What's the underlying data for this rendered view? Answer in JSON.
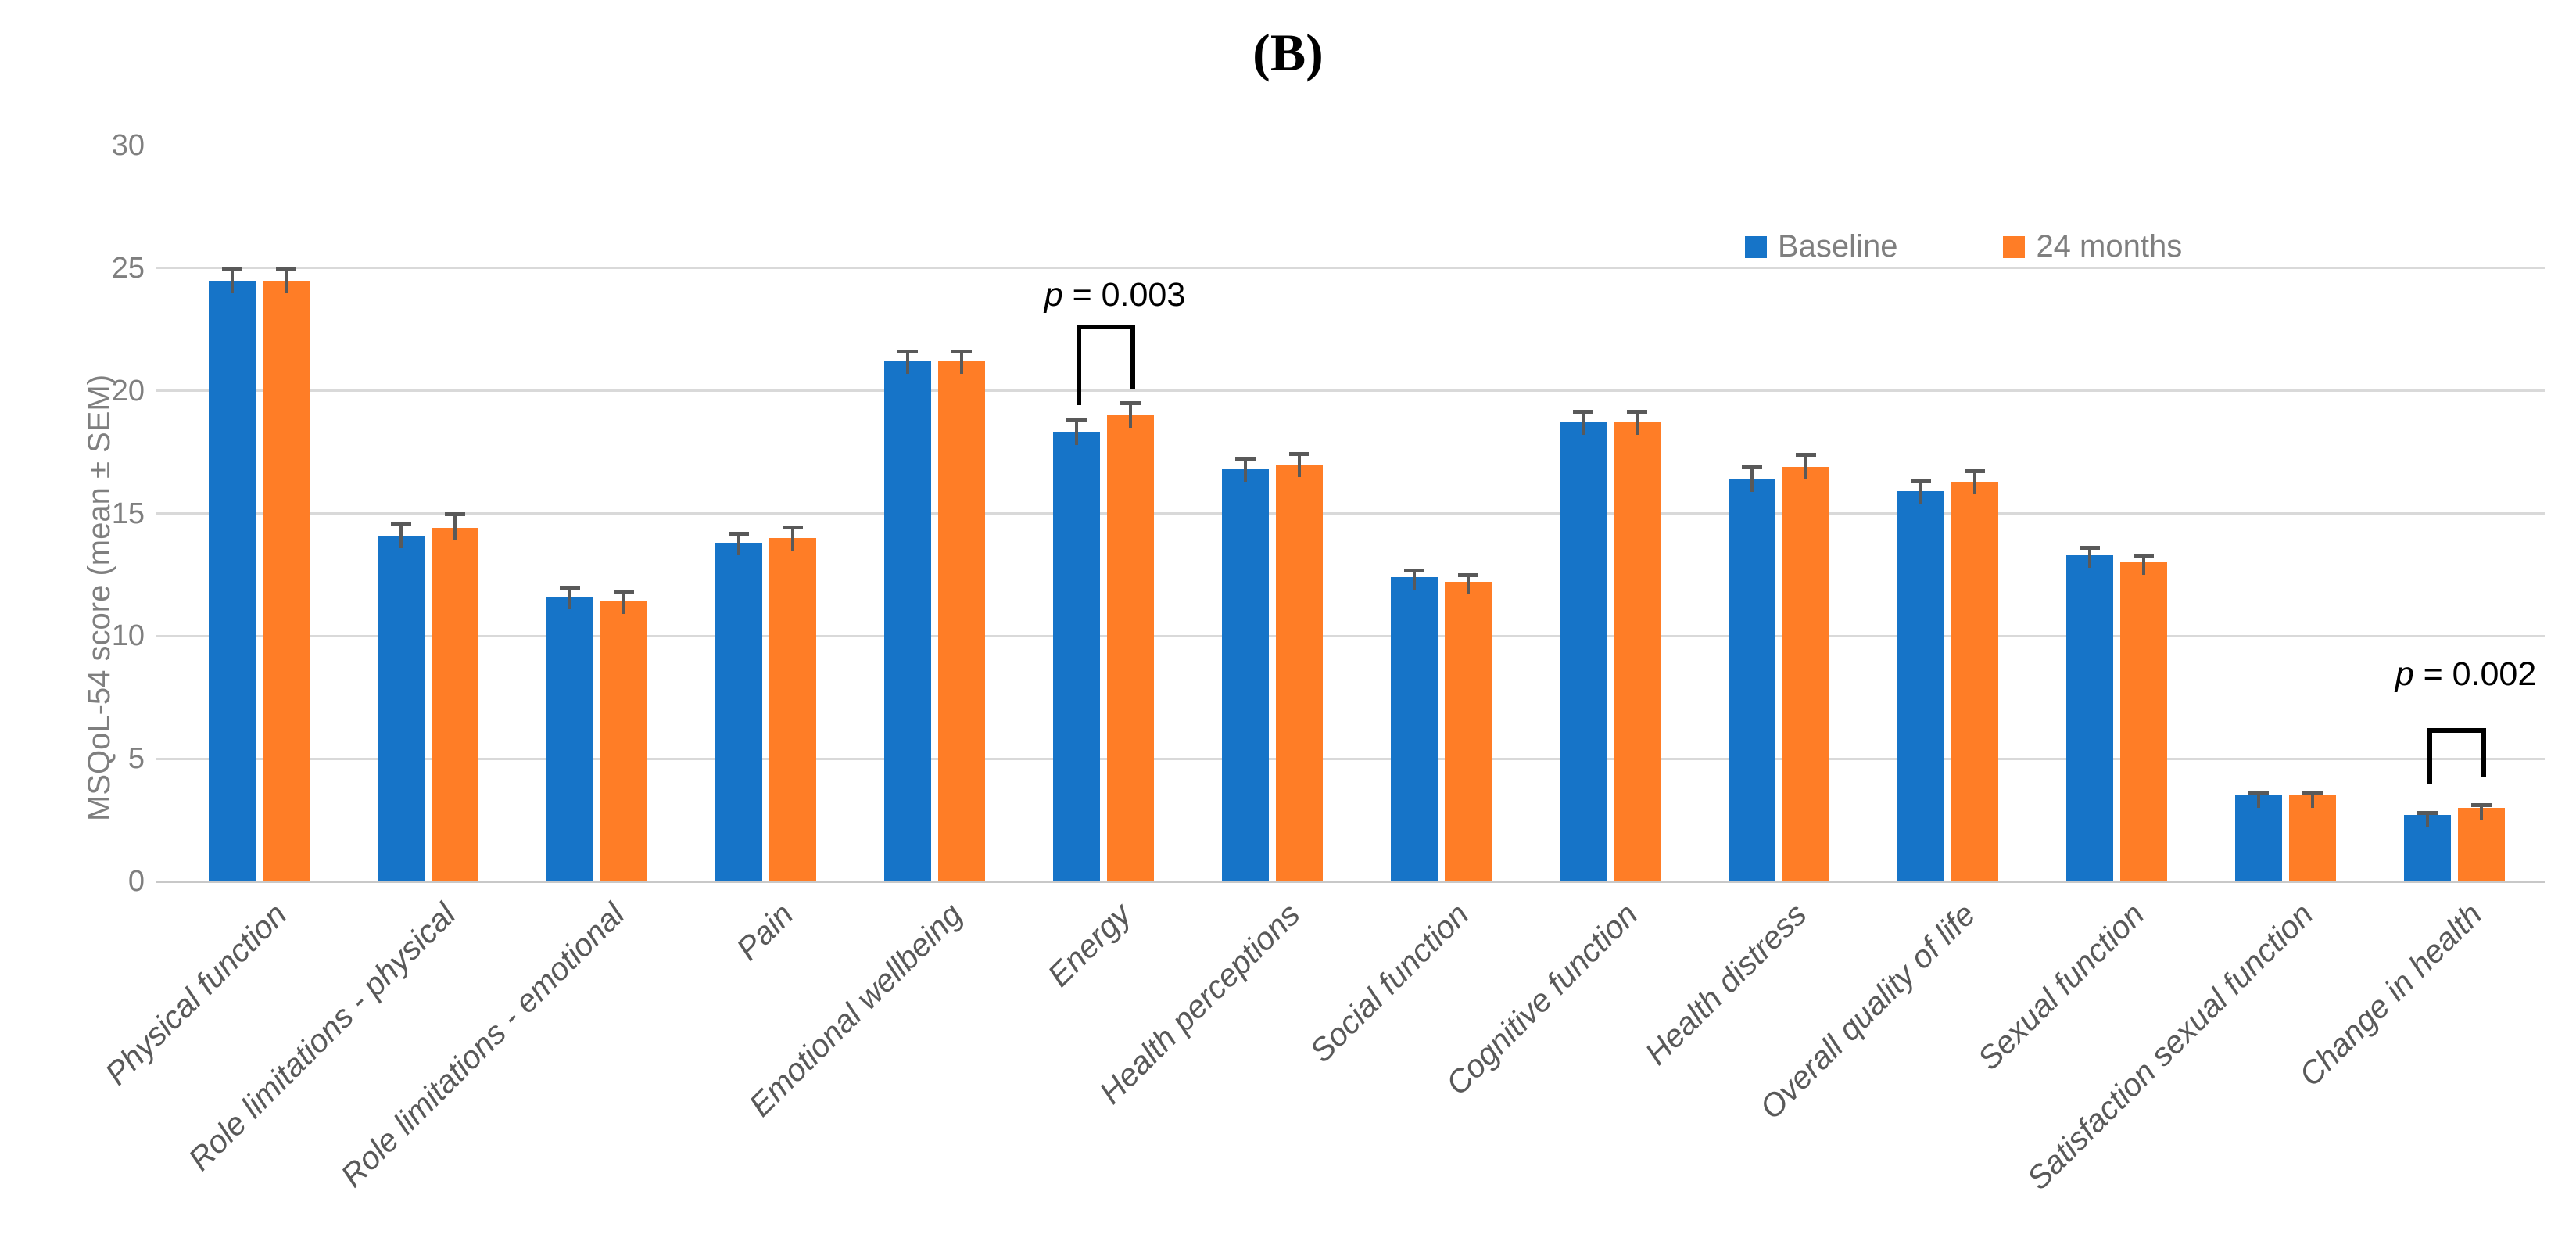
{
  "palette": {
    "background": "#ffffff",
    "gridline": "#d9d9d9",
    "axis_line": "#c8c8c8",
    "tick_text": "#7f7f7f",
    "category_text": "#595959",
    "legend_text": "#7f7f7f",
    "error_bar": "#595959",
    "annotation_text": "#000000",
    "baseline_series": "#1674c8",
    "months24_series": "#ff7d26"
  },
  "chart_data": {
    "type": "bar",
    "title": "(B)",
    "ylabel": "MSQoL-54 score (mean ± SEM)",
    "xlabel": "",
    "ylim": [
      0,
      30
    ],
    "yticks": [
      0,
      5,
      10,
      15,
      20,
      25,
      30
    ],
    "gridline_values": [
      5,
      10,
      15,
      20,
      25
    ],
    "grid": "horizontal only",
    "legend_position": "top-right",
    "error_bars": "upper SEM with cap",
    "categories": [
      "Physical function",
      "Role limitations - physical",
      "Role limitations - emotional",
      "Pain",
      "Emotional wellbeing",
      "Energy",
      "Health perceptions",
      "Social function",
      "Cognitive function",
      "Health distress",
      "Overall quality of life",
      "Sexual function",
      "Satisfaction sexual function",
      "Change in health"
    ],
    "series": [
      {
        "name": "Baseline",
        "color": "#1674c8",
        "values": [
          24.5,
          14.1,
          11.6,
          13.8,
          21.2,
          18.3,
          16.8,
          12.4,
          18.7,
          16.4,
          15.9,
          13.3,
          3.5,
          2.7
        ],
        "sem": [
          0.5,
          0.5,
          0.4,
          0.4,
          0.4,
          0.5,
          0.45,
          0.3,
          0.45,
          0.5,
          0.45,
          0.3,
          0.15,
          0.1
        ]
      },
      {
        "name": "24 months",
        "color": "#ff7d26",
        "values": [
          24.5,
          14.4,
          11.4,
          14.0,
          21.2,
          19.0,
          17.0,
          12.2,
          18.7,
          16.9,
          16.3,
          13.0,
          3.5,
          3.0
        ],
        "sem": [
          0.5,
          0.6,
          0.4,
          0.45,
          0.4,
          0.5,
          0.45,
          0.3,
          0.45,
          0.5,
          0.45,
          0.3,
          0.15,
          0.12
        ]
      }
    ],
    "annotations": [
      {
        "label_prefix": "p",
        "label_rest": " = 0.003",
        "category_index": 5,
        "text_y": 23.9,
        "bracket_top_y": 22.7,
        "left_arm_end_y": 19.4,
        "right_arm_end_y": 20.1
      },
      {
        "label_prefix": "p",
        "label_rest": " = 0.002",
        "category_index": 13,
        "text_y": 8.45,
        "bracket_top_y": 6.25,
        "left_arm_end_y": 4.0,
        "right_arm_end_y": 4.25
      }
    ]
  }
}
